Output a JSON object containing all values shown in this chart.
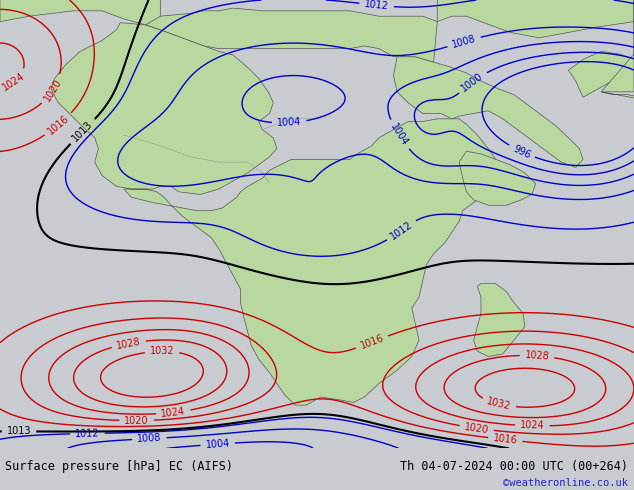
{
  "title_left": "Surface pressure [hPa] EC (AIFS)",
  "title_right": "Th 04-07-2024 00:00 UTC (00+264)",
  "credit": "©weatheronline.co.uk",
  "footer_bg": "#e0e0e0",
  "land_color": "#b8d8a0",
  "ocean_color": "#c8ccd0",
  "fig_bg": "#c8ccd0",
  "blue_color": "#0000cc",
  "red_color": "#cc0000",
  "black_color": "#000000",
  "figsize": [
    6.34,
    4.9
  ],
  "dpi": 100,
  "lon_min": -22,
  "lon_max": 65,
  "lat_min": -43,
  "lat_max": 40
}
